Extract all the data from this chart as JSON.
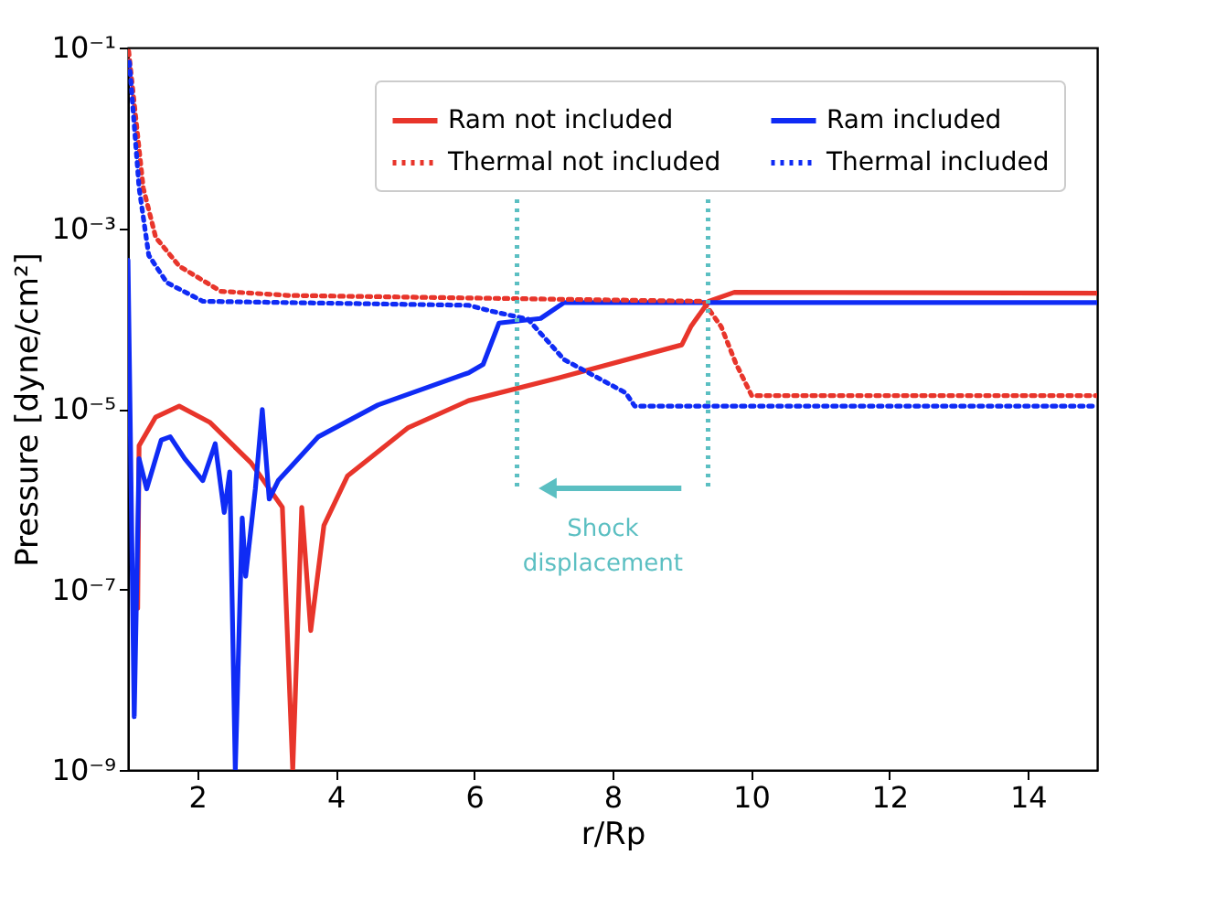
{
  "chart_data": {
    "type": "line",
    "xlabel": "r/Rp",
    "ylabel": "Pressure [dyne/cm²]",
    "log": "y",
    "grid": false,
    "legend": "top right",
    "xlim": [
      1,
      15
    ],
    "xticks": [
      2,
      4,
      6,
      8,
      10,
      12,
      14
    ],
    "ylim": [
      1e-09,
      0.1
    ],
    "yticks": [
      {
        "value": 0.1,
        "label": "10⁻¹"
      },
      {
        "value": 0.001,
        "label": "10⁻³"
      },
      {
        "value": 1e-05,
        "label": "10⁻⁵"
      },
      {
        "value": 1e-07,
        "label": "10⁻⁷"
      },
      {
        "value": 1e-09,
        "label": "10⁻⁹"
      }
    ],
    "series": [
      {
        "name": "Ram not included",
        "color": "#e8352b",
        "line_style": "solid",
        "x": [
          1.14,
          1.16,
          1.4,
          1.74,
          2.18,
          2.78,
          3.23,
          3.38,
          3.51,
          3.64,
          3.83,
          4.17,
          5.05,
          5.92,
          7.22,
          9.0,
          9.13,
          9.39,
          9.76,
          15
        ],
        "values": [
          6.2e-08,
          3.9e-06,
          8.1e-06,
          1.07e-05,
          7.1e-06,
          2.5e-06,
          8.1e-07,
          1e-09,
          8.1e-07,
          3.5e-08,
          5.1e-07,
          1.8e-06,
          6.2e-06,
          1.23e-05,
          2.2e-05,
          5.1e-05,
          8.1e-05,
          0.000155,
          0.000195,
          0.00019
        ]
      },
      {
        "name": "Ram included",
        "color": "#0f2bf5",
        "line_style": "solid",
        "x": [
          1.0,
          1.09,
          1.16,
          1.27,
          1.48,
          1.61,
          1.82,
          2.08,
          2.26,
          2.39,
          2.47,
          2.55,
          2.65,
          2.7,
          2.84,
          2.94,
          3.04,
          3.17,
          3.75,
          4.61,
          5.92,
          6.13,
          6.36,
          6.96,
          7.3,
          15
        ],
        "values": [
          0.00044,
          3.9e-09,
          2.8e-06,
          1.3e-06,
          4.5e-06,
          4.9e-06,
          2.8e-06,
          1.6e-06,
          4.1e-06,
          7.1e-07,
          2e-06,
          1e-09,
          6.2e-07,
          1.4e-07,
          1.3e-06,
          9.8e-06,
          1e-06,
          1.6e-06,
          4.9e-06,
          1.1e-05,
          2.5e-05,
          3.1e-05,
          8.9e-05,
          0.0001,
          0.00015,
          0.00015
        ]
      },
      {
        "name": "Thermal not included",
        "color": "#e8352b",
        "line_style": "dotted",
        "x": [
          1.01,
          1.22,
          1.4,
          1.74,
          2.34,
          3.31,
          9.31,
          9.57,
          9.78,
          10.01,
          15
        ],
        "values": [
          0.091,
          0.0028,
          0.00079,
          0.00038,
          0.0002,
          0.00018,
          0.000155,
          8.1e-05,
          3.2e-05,
          1.4e-05,
          1.4e-05
        ]
      },
      {
        "name": "Thermal included",
        "color": "#0f2bf5",
        "line_style": "dotted",
        "x": [
          1.02,
          1.16,
          1.3,
          1.56,
          2.08,
          5.92,
          6.26,
          6.78,
          7.3,
          8.19,
          8.32,
          15
        ],
        "values": [
          0.069,
          0.0028,
          0.0005,
          0.00025,
          0.000155,
          0.00014,
          0.00012,
          9.8e-05,
          3.5e-05,
          1.5e-05,
          1.07e-05,
          1.07e-05
        ]
      }
    ],
    "ref_lines": [
      {
        "axis": "x",
        "value": 6.62,
        "color": "#5bbfc2",
        "line_style": "dotted"
      },
      {
        "axis": "x",
        "value": 9.38,
        "color": "#5bbfc2",
        "line_style": "dotted"
      }
    ],
    "annotations": [
      "Shock displacement"
    ]
  }
}
